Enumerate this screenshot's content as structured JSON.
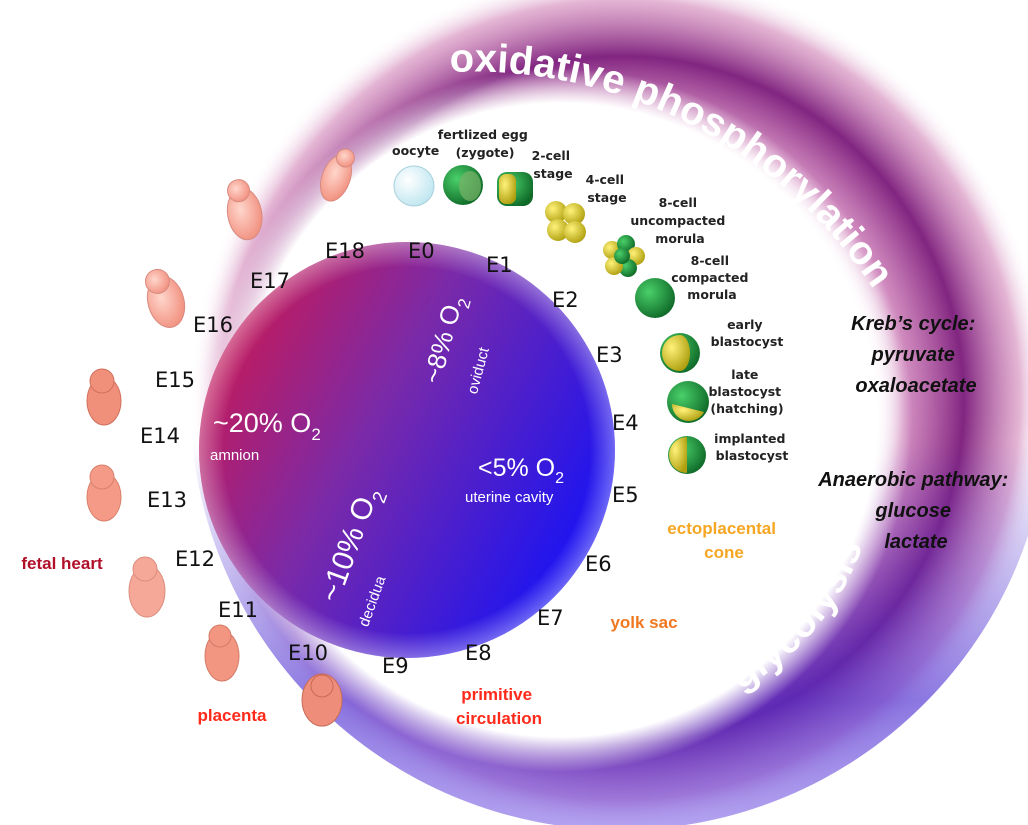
{
  "outer_labels": {
    "oxidative": "oxidative phosphorylation",
    "glycolysis": "glycolysis"
  },
  "oxygen_zones": [
    {
      "value": "~20% O",
      "subscript": "2",
      "site": "amnion"
    },
    {
      "value": "~8% O",
      "subscript": "2",
      "site": "oviduct"
    },
    {
      "value": "<5% O",
      "subscript": "2",
      "site": "uterine cavity"
    },
    {
      "value": "~10% O",
      "subscript": "2",
      "site": "decidua"
    }
  ],
  "days": [
    "E0",
    "E1",
    "E2",
    "E3",
    "E4",
    "E5",
    "E6",
    "E7",
    "E8",
    "E9",
    "E10",
    "E11",
    "E12",
    "E13",
    "E14",
    "E15",
    "E16",
    "E17",
    "E18"
  ],
  "stages": [
    {
      "lines": [
        "oocyte"
      ]
    },
    {
      "lines": [
        "fertlized egg",
        "(zygote)"
      ]
    },
    {
      "lines": [
        "2-cell",
        "stage"
      ]
    },
    {
      "lines": [
        "4-cell",
        "stage"
      ]
    },
    {
      "lines": [
        "8-cell",
        "uncompacted",
        "morula"
      ]
    },
    {
      "lines": [
        "8-cell",
        "compacted",
        "morula"
      ]
    },
    {
      "lines": [
        "early",
        "blastocyst"
      ]
    },
    {
      "lines": [
        "late",
        "blastocyst",
        "(hatching)"
      ]
    },
    {
      "lines": [
        "implanted",
        "blastocyst"
      ]
    }
  ],
  "events": [
    {
      "lines": [
        "ectoplacental",
        "cone"
      ],
      "color": "#f5a623"
    },
    {
      "lines": [
        "yolk sac"
      ],
      "color": "#f07820"
    },
    {
      "lines": [
        "primitive",
        "circulation"
      ],
      "color": "#ff2a1a"
    },
    {
      "lines": [
        "placenta"
      ],
      "color": "#ff2a1a"
    },
    {
      "lines": [
        "fetal heart"
      ],
      "color": "#b0102a"
    }
  ],
  "pathways": {
    "krebs": [
      "Kreb’s cycle:",
      "pyruvate",
      "oxaloacetate"
    ],
    "anaerobic": [
      "Anaerobic pathway:",
      "glucose",
      "lactate"
    ]
  },
  "colors": {
    "oxidative": "#8a1c7c",
    "glycolysis": "#5a22c8",
    "high_o2": "#e0143c",
    "low_o2": "#2a14e6",
    "embryo_green": "#1e8c3a",
    "fetus_pink": "#f4a8a0"
  }
}
